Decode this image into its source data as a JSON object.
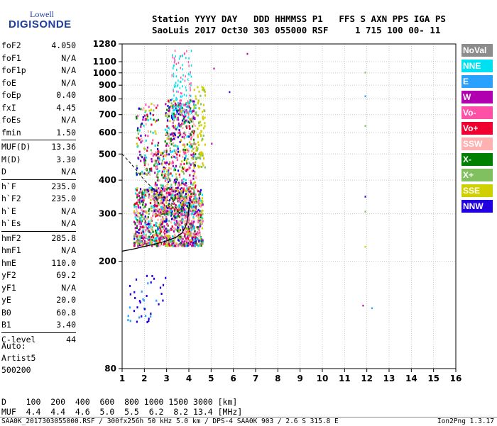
{
  "logo": {
    "line1": "Lowell",
    "line2": "DIGISONDE"
  },
  "header": {
    "row1": "Station YYYY DAY   DDD HHMMSS P1   FFS S AXN PPS IGA PS",
    "row2": "SaoLuis 2017 Oct30 303 055000 RSF     1 715 100 00- 11"
  },
  "params": [
    {
      "name": "foF2",
      "value": "4.050"
    },
    {
      "name": "foF1",
      "value": "N/A"
    },
    {
      "name": "foF1p",
      "value": "N/A"
    },
    {
      "name": "foE",
      "value": "N/A"
    },
    {
      "name": "foEp",
      "value": "0.40"
    },
    {
      "name": "fxI",
      "value": "4.45"
    },
    {
      "name": "foEs",
      "value": "N/A"
    },
    {
      "name": "fmin",
      "value": "1.50"
    },
    {
      "name": "MUF(D)",
      "value": "13.36"
    },
    {
      "name": "M(D)",
      "value": "3.30"
    },
    {
      "name": "D",
      "value": "N/A"
    },
    {
      "name": "h`F",
      "value": "235.0"
    },
    {
      "name": "h`F2",
      "value": "235.0"
    },
    {
      "name": "h`E",
      "value": "N/A"
    },
    {
      "name": "h`Es",
      "value": "N/A"
    },
    {
      "name": "hmF2",
      "value": "285.8"
    },
    {
      "name": "hmF1",
      "value": "N/A"
    },
    {
      "name": "hmE",
      "value": "110.0"
    },
    {
      "name": "yF2",
      "value": "69.2"
    },
    {
      "name": "yF1",
      "value": "N/A"
    },
    {
      "name": "yE",
      "value": "20.0"
    },
    {
      "name": "B0",
      "value": "60.8"
    },
    {
      "name": "B1",
      "value": "3.40"
    },
    {
      "name": "C-level",
      "value": "44"
    }
  ],
  "auto": {
    "line1": "Auto:",
    "line2": "Artist5",
    "line3": "500200"
  },
  "legend": [
    {
      "label": "NoVal",
      "color": "#8c8c8c"
    },
    {
      "label": "NNE",
      "color": "#00e0f0"
    },
    {
      "label": "E",
      "color": "#2aa0ff"
    },
    {
      "label": "W",
      "color": "#b000b0"
    },
    {
      "label": "Vo-",
      "color": "#ff50a8"
    },
    {
      "label": "Vo+",
      "color": "#f00030"
    },
    {
      "label": "SSW",
      "color": "#ffb0b0"
    },
    {
      "label": "X-",
      "color": "#008000"
    },
    {
      "label": "X+",
      "color": "#80c060"
    },
    {
      "label": "SSE",
      "color": "#d0d000"
    },
    {
      "label": "NNW",
      "color": "#2000e0"
    }
  ],
  "footer": {
    "d_row": "D    100  200  400  600  800 1000 1500 3000 [km]",
    "muf_row": "MUF  4.4  4.4  4.6  5.0  5.5  6.2  8.2 13.4 [MHz]"
  },
  "status": {
    "left": "SAA0K_2017303055000.RSF / 300fx256h 50 kHz 5.0 km / DPS-4 SAA0K 903 / 2.6 S 315.8 E",
    "right": "Ion2Png 1.3.17"
  },
  "chart_data": {
    "type": "scatter",
    "xlabel": "",
    "ylabel": "",
    "xlim": [
      1,
      16
    ],
    "ylim": [
      80,
      1280
    ],
    "y_scale": "log",
    "x_ticks": [
      1,
      2,
      3,
      4,
      5,
      6,
      7,
      8,
      9,
      10,
      11,
      12,
      13,
      14,
      15,
      16
    ],
    "y_ticks": [
      80,
      200,
      300,
      400,
      500,
      600,
      700,
      800,
      900,
      1000,
      1100,
      1280
    ],
    "grid": true,
    "trace": {
      "name": "",
      "x": [
        1.0,
        1.5,
        2.0,
        2.5,
        3.0,
        3.4,
        3.7,
        3.9,
        4.05
      ],
      "y": [
        218,
        222,
        227,
        232,
        238,
        245,
        255,
        275,
        330
      ]
    },
    "trace2": {
      "x": [
        1.0,
        1.3,
        1.6,
        2.0,
        2.5,
        3.0,
        3.3,
        3.5
      ],
      "y": [
        500,
        470,
        440,
        400,
        365,
        340,
        325,
        310
      ]
    },
    "cluster": {
      "center_x": 3.2,
      "center_y": 300,
      "regions": [
        {
          "x0": 1.5,
          "x1": 4.6,
          "y0": 230,
          "y1": 380
        },
        {
          "x0": 2.4,
          "x1": 4.3,
          "y0": 300,
          "y1": 800
        },
        {
          "x0": 3.2,
          "x1": 4.1,
          "y0": 700,
          "y1": 1230
        },
        {
          "x0": 1.6,
          "x1": 2.6,
          "y0": 420,
          "y1": 780
        },
        {
          "x0": 1.2,
          "x1": 3.0,
          "y0": 120,
          "y1": 180
        },
        {
          "x0": 4.2,
          "x1": 4.7,
          "y0": 450,
          "y1": 900
        }
      ]
    },
    "outliers": [
      {
        "x": 6.6,
        "y": 1185
      },
      {
        "x": 5.1,
        "y": 1045
      },
      {
        "x": 5.8,
        "y": 855
      },
      {
        "x": 5.0,
        "y": 550
      },
      {
        "x": 11.9,
        "y": 1010
      },
      {
        "x": 11.9,
        "y": 825
      },
      {
        "x": 11.9,
        "y": 640
      },
      {
        "x": 11.9,
        "y": 350
      },
      {
        "x": 11.9,
        "y": 308
      },
      {
        "x": 11.9,
        "y": 228
      },
      {
        "x": 12.2,
        "y": 135
      },
      {
        "x": 11.8,
        "y": 138
      }
    ]
  }
}
